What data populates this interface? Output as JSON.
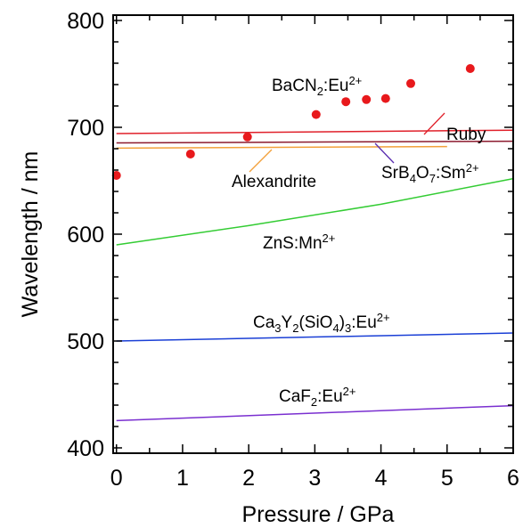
{
  "chart_data": {
    "type": "line",
    "xlabel": "Pressure / GPa",
    "ylabel": "Wavelength / nm",
    "xlim": [
      -0.05,
      6
    ],
    "ylim": [
      395,
      805
    ],
    "xticks": [
      "0",
      "1",
      "2",
      "3",
      "4",
      "5",
      "6"
    ],
    "yticks": [
      "400",
      "500",
      "600",
      "700",
      "800"
    ],
    "grid": false,
    "legend": "none",
    "series": [
      {
        "type": "line",
        "color": "#e0202a",
        "x": [
          0,
          6
        ],
        "y": [
          694.2,
          697.3
        ]
      },
      {
        "type": "line",
        "color": "#8c1a2e",
        "x": [
          0,
          6
        ],
        "y": [
          685.4,
          687.0
        ]
      },
      {
        "type": "line",
        "color": "#f2a03a",
        "x": [
          0,
          5
        ],
        "y": [
          680.5,
          682.0
        ]
      },
      {
        "type": "line",
        "color": "#33cc33",
        "x": [
          0,
          2,
          4,
          6
        ],
        "y": [
          590,
          608,
          628,
          652
        ]
      },
      {
        "type": "line",
        "color": "#1a3fd6",
        "x": [
          0,
          6
        ],
        "y": [
          500,
          507.5
        ]
      },
      {
        "type": "line",
        "color": "#7a2fd0",
        "x": [
          0,
          6
        ],
        "y": [
          425.5,
          439.5
        ]
      },
      {
        "type": "scatter",
        "color": "#e8191c",
        "x": [
          0,
          1.12,
          1.98,
          3.02,
          3.47,
          3.78,
          4.07,
          4.45,
          5.35
        ],
        "y": [
          655,
          675,
          691,
          712,
          724,
          726,
          727,
          741,
          755
        ]
      }
    ],
    "annotations": [
      {
        "id": "ruby",
        "parts": [
          [
            "n",
            "Ruby"
          ]
        ]
      },
      {
        "id": "bacn2",
        "parts": [
          [
            "n",
            "BaCN"
          ],
          [
            "sub",
            "2"
          ],
          [
            "n",
            ":Eu"
          ],
          [
            "sup",
            "2+"
          ]
        ]
      },
      {
        "id": "srb4o7",
        "parts": [
          [
            "n",
            "SrB"
          ],
          [
            "sub",
            "4"
          ],
          [
            "n",
            "O"
          ],
          [
            "sub",
            "7"
          ],
          [
            "n",
            ":Sm"
          ],
          [
            "sup",
            "2+"
          ]
        ]
      },
      {
        "id": "alexandrite",
        "parts": [
          [
            "n",
            "Alexandrite"
          ]
        ]
      },
      {
        "id": "zns",
        "parts": [
          [
            "n",
            "ZnS:Mn"
          ],
          [
            "sup",
            "2+"
          ]
        ]
      },
      {
        "id": "ca3y2",
        "parts": [
          [
            "n",
            "Ca"
          ],
          [
            "sub",
            "3"
          ],
          [
            "n",
            "Y"
          ],
          [
            "sub",
            "2"
          ],
          [
            "n",
            "(SiO"
          ],
          [
            "sub",
            "4"
          ],
          [
            "n",
            ")"
          ],
          [
            "sub",
            "3"
          ],
          [
            "n",
            ":Eu"
          ],
          [
            "sup",
            "2+"
          ]
        ]
      },
      {
        "id": "caf2",
        "parts": [
          [
            "n",
            "CaF"
          ],
          [
            "sub",
            "2"
          ],
          [
            "n",
            ":Eu"
          ],
          [
            "sup",
            "2+"
          ]
        ]
      }
    ]
  }
}
